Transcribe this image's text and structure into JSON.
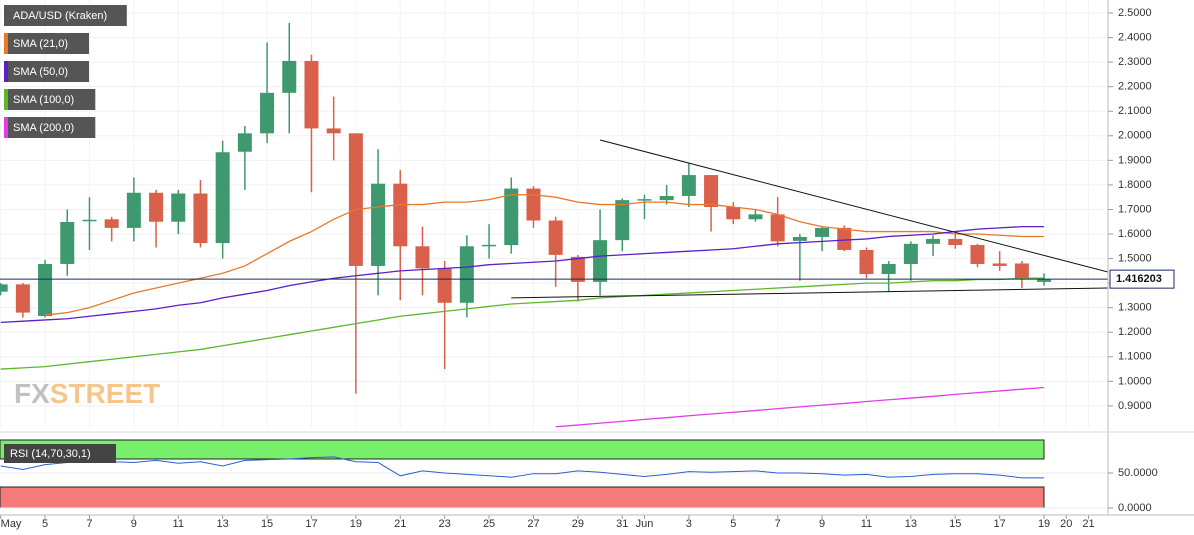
{
  "chart_data": [
    {
      "type": "candlestick",
      "x": [
        0,
        1,
        2,
        3,
        4,
        5,
        6,
        7,
        8,
        9,
        10,
        11,
        12,
        13,
        14,
        15,
        16,
        17,
        18,
        19,
        20,
        21,
        22,
        23,
        24,
        25,
        26,
        27,
        28,
        29,
        30,
        31,
        32,
        33,
        34,
        35,
        36,
        37,
        38,
        39,
        40,
        41,
        42,
        43,
        44,
        45,
        46,
        47
      ],
      "xlim": [
        -0.03,
        49.88
      ],
      "xticks": [
        {
          "value": 0,
          "label": "May"
        },
        {
          "value": 2,
          "label": "5"
        },
        {
          "value": 4,
          "label": "7"
        },
        {
          "value": 6,
          "label": "9"
        },
        {
          "value": 8,
          "label": "11"
        },
        {
          "value": 10,
          "label": "13"
        },
        {
          "value": 12,
          "label": "15"
        },
        {
          "value": 14,
          "label": "17"
        },
        {
          "value": 16,
          "label": "19"
        },
        {
          "value": 18,
          "label": "21"
        },
        {
          "value": 20,
          "label": "23"
        },
        {
          "value": 22,
          "label": "25"
        },
        {
          "value": 24,
          "label": "27"
        },
        {
          "value": 26,
          "label": "29"
        },
        {
          "value": 28,
          "label": "31"
        },
        {
          "value": 29,
          "label": "Jun"
        },
        {
          "value": 31,
          "label": "3"
        },
        {
          "value": 33,
          "label": "5"
        },
        {
          "value": 35,
          "label": "7"
        },
        {
          "value": 37,
          "label": "9"
        },
        {
          "value": 39,
          "label": "11"
        },
        {
          "value": 41,
          "label": "13"
        },
        {
          "value": 43,
          "label": "15"
        },
        {
          "value": 45,
          "label": "17"
        },
        {
          "value": 47,
          "label": "19"
        },
        {
          "value": 48,
          "label": "20"
        },
        {
          "value": 49,
          "label": "21"
        }
      ],
      "ylim": [
        0.81,
        2.553
      ],
      "yticks": [
        {
          "value": 0.9,
          "label": "0.9000"
        },
        {
          "value": 1.0,
          "label": "1.0000"
        },
        {
          "value": 1.1,
          "label": "1.1000"
        },
        {
          "value": 1.2,
          "label": "1.2000"
        },
        {
          "value": 1.3,
          "label": "1.3000"
        },
        {
          "value": 1.4,
          "label": "1.4000"
        },
        {
          "value": 1.5,
          "label": "1.5000"
        },
        {
          "value": 1.6,
          "label": "1.6000"
        },
        {
          "value": 1.7,
          "label": "1.7000"
        },
        {
          "value": 1.8,
          "label": "1.8000"
        },
        {
          "value": 1.9,
          "label": "1.9000"
        },
        {
          "value": 2.0,
          "label": "2.0000"
        },
        {
          "value": 2.1,
          "label": "2.1000"
        },
        {
          "value": 2.2,
          "label": "2.2000"
        },
        {
          "value": 2.3,
          "label": "2.3000"
        },
        {
          "value": 2.4,
          "label": "2.4000"
        },
        {
          "value": 2.5,
          "label": "2.5000"
        }
      ],
      "grid": true,
      "last_price": 1.416203,
      "watermark": [
        "FX",
        "STREET"
      ],
      "series": [
        {
          "name": "ADA/USD (Kraken)",
          "type": "candlestick",
          "up_color": "#3e9a6e",
          "down_color": "#d9614b",
          "open": [
            1.365,
            1.395,
            1.266,
            1.478,
            1.652,
            1.66,
            1.625,
            1.768,
            1.65,
            1.765,
            1.563,
            1.935,
            2.01,
            2.175,
            2.305,
            2.03,
            2.01,
            1.47,
            1.805,
            1.55,
            1.46,
            1.32,
            1.553,
            1.555,
            1.785,
            1.655,
            1.507,
            1.405,
            1.575,
            1.738,
            1.738,
            1.755,
            1.84,
            1.71,
            1.66,
            1.68,
            1.572,
            1.588,
            1.625,
            1.535,
            1.437,
            1.478,
            1.56,
            1.58,
            1.555,
            1.48,
            1.48,
            1.405
          ],
          "high": [
            1.4,
            1.4,
            1.495,
            1.7,
            1.75,
            1.67,
            1.83,
            1.78,
            1.78,
            1.82,
            1.98,
            2.04,
            2.38,
            2.46,
            2.33,
            2.16,
            2.01,
            1.945,
            1.86,
            1.63,
            1.49,
            1.595,
            1.64,
            1.83,
            1.795,
            1.67,
            1.515,
            1.7,
            1.745,
            1.76,
            1.8,
            1.89,
            1.84,
            1.73,
            1.7,
            1.75,
            1.6,
            1.63,
            1.635,
            1.545,
            1.49,
            1.57,
            1.595,
            1.605,
            1.56,
            1.53,
            1.49,
            1.44
          ],
          "low": [
            1.35,
            1.26,
            1.26,
            1.43,
            1.535,
            1.57,
            1.57,
            1.545,
            1.6,
            1.545,
            1.5,
            1.78,
            1.97,
            2.01,
            1.77,
            1.9,
            0.95,
            1.35,
            1.33,
            1.35,
            1.05,
            1.26,
            1.5,
            1.52,
            1.625,
            1.385,
            1.325,
            1.35,
            1.53,
            1.66,
            1.72,
            1.71,
            1.61,
            1.64,
            1.65,
            1.55,
            1.41,
            1.53,
            1.53,
            1.42,
            1.365,
            1.41,
            1.51,
            1.54,
            1.465,
            1.45,
            1.38,
            1.39
          ],
          "close": [
            1.395,
            1.28,
            1.478,
            1.649,
            1.658,
            1.625,
            1.768,
            1.65,
            1.765,
            1.563,
            1.933,
            2.01,
            2.175,
            2.305,
            2.03,
            2.01,
            1.47,
            1.805,
            1.55,
            1.46,
            1.32,
            1.55,
            1.556,
            1.785,
            1.655,
            1.515,
            1.405,
            1.575,
            1.738,
            1.742,
            1.755,
            1.84,
            1.71,
            1.66,
            1.68,
            1.57,
            1.588,
            1.625,
            1.535,
            1.437,
            1.478,
            1.56,
            1.58,
            1.555,
            1.478,
            1.47,
            1.416,
            1.416203
          ]
        },
        {
          "name": "SMA (21,0)",
          "type": "line",
          "color": "#e8782a",
          "values": [
            null,
            null,
            1.27,
            1.28,
            1.3,
            1.33,
            1.36,
            1.38,
            1.4,
            1.42,
            1.44,
            1.47,
            1.52,
            1.57,
            1.61,
            1.66,
            1.7,
            1.71,
            1.72,
            1.72,
            1.73,
            1.73,
            1.74,
            1.76,
            1.76,
            1.75,
            1.73,
            1.72,
            1.72,
            1.73,
            1.73,
            1.72,
            1.72,
            1.71,
            1.7,
            1.68,
            1.65,
            1.63,
            1.62,
            1.61,
            1.61,
            1.61,
            1.61,
            1.6,
            1.6,
            1.595,
            1.59,
            1.59
          ]
        },
        {
          "name": "SMA (50,0)",
          "type": "line",
          "color": "#5a1fc8",
          "values": [
            1.24,
            1.245,
            1.25,
            1.255,
            1.265,
            1.275,
            1.285,
            1.295,
            1.31,
            1.32,
            1.34,
            1.355,
            1.37,
            1.39,
            1.405,
            1.42,
            1.43,
            1.44,
            1.45,
            1.455,
            1.46,
            1.465,
            1.475,
            1.48,
            1.485,
            1.49,
            1.5,
            1.51,
            1.515,
            1.52,
            1.525,
            1.53,
            1.535,
            1.54,
            1.55,
            1.56,
            1.565,
            1.57,
            1.575,
            1.58,
            1.59,
            1.595,
            1.6,
            1.61,
            1.62,
            1.625,
            1.63,
            1.63
          ]
        },
        {
          "name": "SMA (100,0)",
          "type": "line",
          "color": "#5cb82a",
          "values": [
            1.05,
            1.055,
            1.06,
            1.07,
            1.08,
            1.09,
            1.1,
            1.11,
            1.12,
            1.13,
            1.145,
            1.16,
            1.175,
            1.19,
            1.205,
            1.22,
            1.235,
            1.25,
            1.265,
            1.275,
            1.285,
            1.295,
            1.305,
            1.315,
            1.32,
            1.325,
            1.33,
            1.34,
            1.345,
            1.35,
            1.355,
            1.36,
            1.365,
            1.37,
            1.375,
            1.38,
            1.385,
            1.39,
            1.395,
            1.4,
            1.4,
            1.405,
            1.41,
            1.41,
            1.415,
            1.415,
            1.42,
            1.42
          ]
        },
        {
          "name": "SMA (200,0)",
          "type": "line",
          "color": "#e23ce8",
          "values": [
            null,
            null,
            null,
            null,
            null,
            null,
            null,
            null,
            null,
            null,
            null,
            null,
            null,
            null,
            null,
            null,
            null,
            null,
            null,
            null,
            null,
            null,
            null,
            null,
            null,
            0.815,
            0.822,
            0.83,
            0.837,
            0.845,
            0.852,
            0.86,
            0.867,
            0.874,
            0.881,
            0.889,
            0.896,
            0.903,
            0.91,
            0.918,
            0.925,
            0.932,
            0.939,
            0.947,
            0.954,
            0.961,
            0.968,
            0.975
          ]
        }
      ],
      "trendlines": [
        {
          "x": [
            27,
            49.88
          ],
          "y": [
            1.983,
            1.445
          ]
        },
        {
          "x": [
            23,
            49.88
          ],
          "y": [
            1.34,
            1.38
          ]
        }
      ]
    },
    {
      "type": "line",
      "title": "RSI (14,70,30,1)",
      "ylim": [
        -10,
        101.4
      ],
      "yticks": [
        {
          "value": 50,
          "label": "50.0000"
        },
        {
          "value": 0,
          "label": "0.0000"
        }
      ],
      "overbought": 70,
      "oversold": 30,
      "color": "#2a5fd0",
      "values": [
        60,
        55,
        62,
        65,
        66,
        66,
        65,
        68,
        64,
        66,
        60,
        68,
        69,
        70,
        72,
        73,
        66,
        65,
        46,
        53,
        50,
        48,
        46,
        44,
        49,
        49,
        53,
        51,
        48,
        45,
        48,
        52,
        51,
        52,
        53,
        50,
        50,
        49,
        47,
        48,
        44,
        45,
        48,
        49,
        49,
        47,
        43,
        43
      ]
    }
  ]
}
